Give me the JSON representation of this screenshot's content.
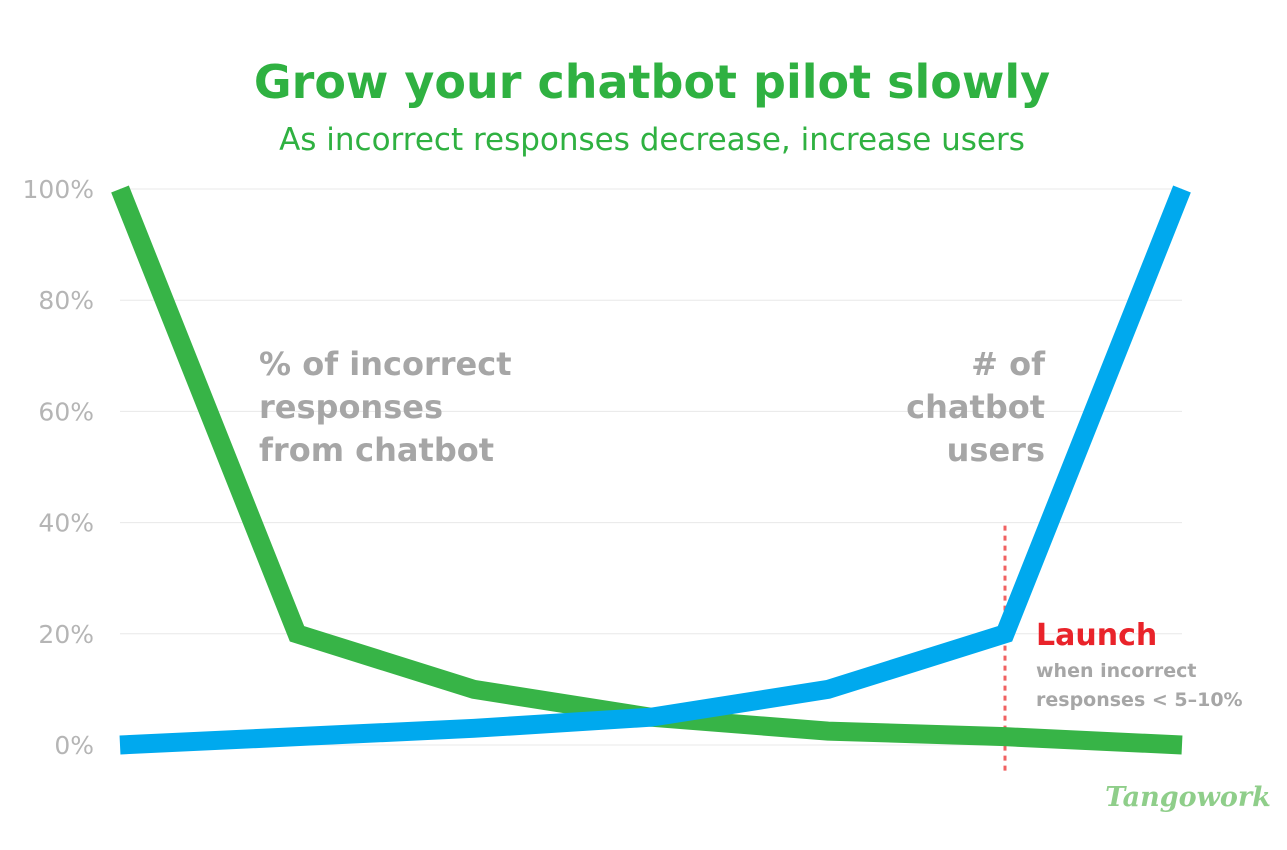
{
  "title": "Grow your chatbot pilot slowly",
  "subtitle": "As incorrect responses decrease, increase users",
  "colors": {
    "title": "#2fb141",
    "green_series": "#37b447",
    "blue_series": "#00a9ee",
    "axis_text": "#b5b5b5",
    "annotation_text": "#a6a6a6",
    "launch_text": "#e9232a",
    "launch_line": "#f06262",
    "grid": "#e8e8e8"
  },
  "chart_data": {
    "type": "line",
    "x": [
      0,
      1,
      2,
      3,
      4,
      5,
      6
    ],
    "ylim": [
      0,
      100
    ],
    "yticks": [
      "0%",
      "20%",
      "40%",
      "60%",
      "80%",
      "100%"
    ],
    "grid": true,
    "series": [
      {
        "key": "incorrect",
        "values": [
          100,
          20,
          10,
          5,
          2.5,
          1.5,
          0
        ],
        "label_lines": [
          "% of incorrect",
          "responses",
          "from chatbot"
        ]
      },
      {
        "key": "users",
        "values": [
          0,
          1.5,
          3,
          5,
          10,
          20,
          100
        ],
        "label_lines": [
          "# of",
          "chatbot",
          "users"
        ]
      }
    ],
    "launch_marker": {
      "x": 5,
      "label": "Launch",
      "note_lines": [
        "when incorrect",
        "responses < 5–10%"
      ]
    }
  },
  "logo": {
    "text": "Tangowork"
  }
}
